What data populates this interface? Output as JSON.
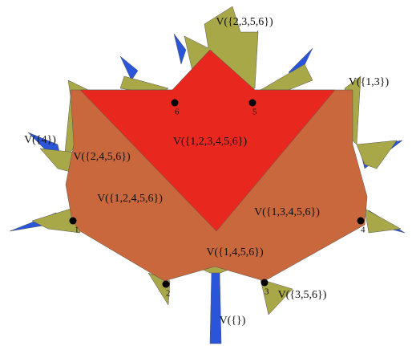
{
  "regions": [
    {
      "label": "V({2,3,5,6})"
    },
    {
      "label": "V({1,3})"
    },
    {
      "label": "V({4})"
    },
    {
      "label": "V({2,4,5,6})"
    },
    {
      "label": "V({1,2,3,4,5,6})"
    },
    {
      "label": "V({1,2,4,5,6})"
    },
    {
      "label": "V({1,3,4,5,6})"
    },
    {
      "label": "V({1,4,5,6})"
    },
    {
      "label": "V({3,5,6})"
    },
    {
      "label": "V({})"
    }
  ],
  "points": [
    {
      "label": "1"
    },
    {
      "label": "2"
    },
    {
      "label": "3"
    },
    {
      "label": "4"
    },
    {
      "label": "5"
    },
    {
      "label": "6"
    }
  ]
}
